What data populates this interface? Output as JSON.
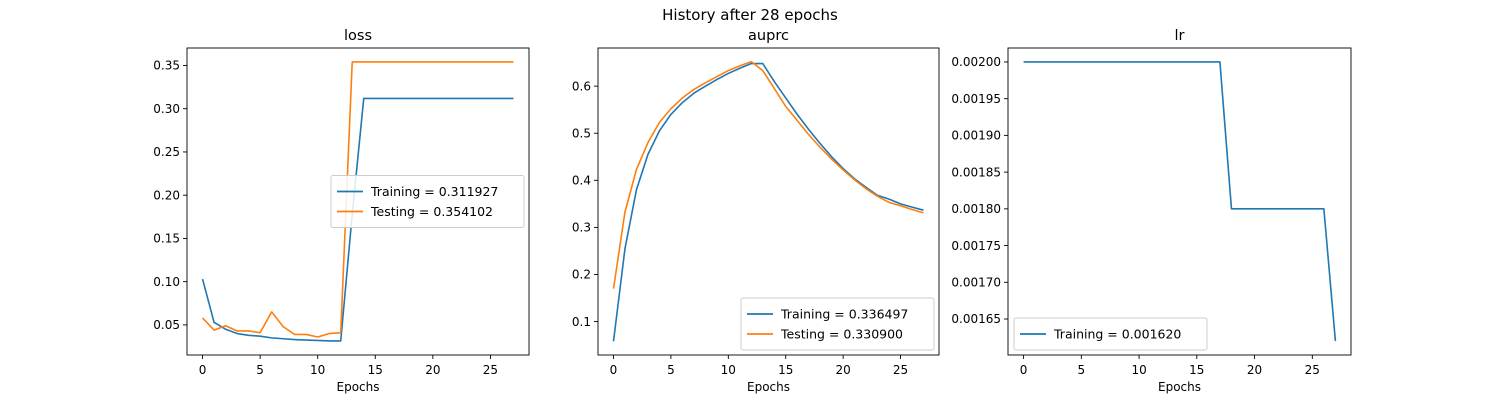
{
  "suptitle": "History after 28 epochs",
  "colors": {
    "training": "#1f77b4",
    "testing": "#ff7f0e"
  },
  "chart_data": [
    {
      "type": "line",
      "title": "loss",
      "xlabel": "Epochs",
      "ylabel": "",
      "xlim": [
        -1.35,
        28.35
      ],
      "ylim": [
        0.0152,
        0.3702
      ],
      "xticks": [
        0,
        5,
        10,
        15,
        20,
        25
      ],
      "yticks": [
        0.05,
        0.1,
        0.15,
        0.2,
        0.25,
        0.3,
        0.35
      ],
      "ytick_decimals": 2,
      "legend": "center-right",
      "x": [
        0,
        1,
        2,
        3,
        4,
        5,
        6,
        7,
        8,
        9,
        10,
        11,
        12,
        13,
        14,
        15,
        16,
        17,
        18,
        19,
        20,
        21,
        22,
        23,
        24,
        25,
        26,
        27
      ],
      "series": [
        {
          "name": "Training = 0.311927",
          "color": "#1f77b4",
          "values": [
            0.103,
            0.053,
            0.045,
            0.04,
            0.038,
            0.037,
            0.035,
            0.034,
            0.033,
            0.0325,
            0.032,
            0.0315,
            0.0315,
            0.178,
            0.311927,
            0.311927,
            0.311927,
            0.311927,
            0.311927,
            0.311927,
            0.311927,
            0.311927,
            0.311927,
            0.311927,
            0.311927,
            0.311927,
            0.311927,
            0.311927
          ]
        },
        {
          "name": "Testing = 0.354102",
          "color": "#ff7f0e",
          "values": [
            0.058,
            0.044,
            0.049,
            0.043,
            0.043,
            0.041,
            0.065,
            0.048,
            0.039,
            0.039,
            0.036,
            0.04,
            0.041,
            0.354102,
            0.354102,
            0.354102,
            0.354102,
            0.354102,
            0.354102,
            0.354102,
            0.354102,
            0.354102,
            0.354102,
            0.354102,
            0.354102,
            0.354102,
            0.354102,
            0.354102
          ]
        }
      ]
    },
    {
      "type": "line",
      "title": "auprc",
      "xlabel": "Epochs",
      "ylabel": "",
      "xlim": [
        -1.35,
        28.35
      ],
      "ylim": [
        0.029,
        0.681
      ],
      "xticks": [
        0,
        5,
        10,
        15,
        20,
        25
      ],
      "yticks": [
        0.1,
        0.2,
        0.3,
        0.4,
        0.5,
        0.6
      ],
      "ytick_decimals": 1,
      "legend": "lower-right",
      "x": [
        0,
        1,
        2,
        3,
        4,
        5,
        6,
        7,
        8,
        9,
        10,
        11,
        12,
        13,
        14,
        15,
        16,
        17,
        18,
        19,
        20,
        21,
        22,
        23,
        24,
        25,
        26,
        27
      ],
      "series": [
        {
          "name": "Training = 0.336497",
          "color": "#1f77b4",
          "values": [
            0.058,
            0.255,
            0.38,
            0.455,
            0.505,
            0.54,
            0.565,
            0.585,
            0.6,
            0.614,
            0.627,
            0.638,
            0.648,
            0.648,
            0.61,
            0.575,
            0.54,
            0.508,
            0.478,
            0.45,
            0.425,
            0.403,
            0.385,
            0.368,
            0.36,
            0.35,
            0.343,
            0.336497
          ]
        },
        {
          "name": "Testing = 0.330900",
          "color": "#ff7f0e",
          "values": [
            0.17,
            0.333,
            0.423,
            0.48,
            0.523,
            0.552,
            0.575,
            0.593,
            0.607,
            0.62,
            0.633,
            0.643,
            0.652,
            0.633,
            0.595,
            0.557,
            0.527,
            0.497,
            0.47,
            0.445,
            0.422,
            0.401,
            0.382,
            0.366,
            0.353,
            0.346,
            0.338,
            0.3309
          ]
        }
      ]
    },
    {
      "type": "line",
      "title": "lr",
      "xlabel": "Epochs",
      "ylabel": "",
      "xlim": [
        -1.35,
        28.35
      ],
      "ylim": [
        0.001601,
        0.002019
      ],
      "xticks": [
        0,
        5,
        10,
        15,
        20,
        25
      ],
      "yticks": [
        0.00165,
        0.0017,
        0.00175,
        0.0018,
        0.00185,
        0.0019,
        0.00195,
        0.002
      ],
      "ytick_decimals": 5,
      "legend": "lower-left",
      "x": [
        0,
        1,
        2,
        3,
        4,
        5,
        6,
        7,
        8,
        9,
        10,
        11,
        12,
        13,
        14,
        15,
        16,
        17,
        18,
        19,
        20,
        21,
        22,
        23,
        24,
        25,
        26,
        27
      ],
      "series": [
        {
          "name": "Training = 0.001620",
          "color": "#1f77b4",
          "values": [
            0.002,
            0.002,
            0.002,
            0.002,
            0.002,
            0.002,
            0.002,
            0.002,
            0.002,
            0.002,
            0.002,
            0.002,
            0.002,
            0.002,
            0.002,
            0.002,
            0.002,
            0.002,
            0.0018,
            0.0018,
            0.0018,
            0.0018,
            0.0018,
            0.0018,
            0.0018,
            0.0018,
            0.0018,
            0.00162
          ]
        }
      ]
    }
  ]
}
